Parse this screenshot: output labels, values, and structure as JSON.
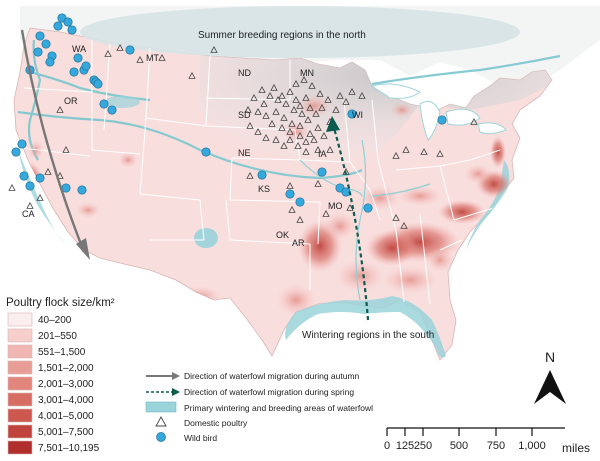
{
  "map": {
    "breeding_label": "Summer breeding regions in the north",
    "wintering_label": "Wintering regions in the south",
    "states": [
      "WA",
      "MT",
      "ND",
      "MN",
      "OR",
      "SD",
      "WI",
      "NE",
      "IA",
      "KS",
      "MO",
      "CA",
      "OK",
      "AR"
    ]
  },
  "legend": {
    "title": "Poultry flock size/km²",
    "bins": [
      {
        "label": "40–200",
        "color": "#fbeeee"
      },
      {
        "label": "201–550",
        "color": "#f6cfcd"
      },
      {
        "label": "551–1,500",
        "color": "#f0b6b1"
      },
      {
        "label": "1,501–2,000",
        "color": "#e99d97"
      },
      {
        "label": "2,001–3,000",
        "color": "#e2857d"
      },
      {
        "label": "3,001–4,000",
        "color": "#d86d64"
      },
      {
        "label": "4,001–5,000",
        "color": "#cc5850"
      },
      {
        "label": "5,001–7,500",
        "color": "#c0443d"
      },
      {
        "label": "7,501–10,195",
        "color": "#b02f2c"
      }
    ]
  },
  "key": {
    "autumn": "Direction of waterfowl migration during autumn",
    "spring": "Direction of waterfowl migration during spring",
    "areas": "Primary wintering and breeding areas of waterfowl",
    "poultry": "Domestic poultry",
    "bird": "Wild bird"
  },
  "north": "N",
  "scale": {
    "ticks": [
      "0",
      "125",
      "250",
      "500",
      "750",
      "1,000"
    ],
    "unit": "miles"
  },
  "colors": {
    "land": "#f9dede",
    "breeding": "#d3d6d8",
    "water": "#8fcfd6",
    "wild_bird": "#35a8dc",
    "hotspot": "#c9514a"
  }
}
